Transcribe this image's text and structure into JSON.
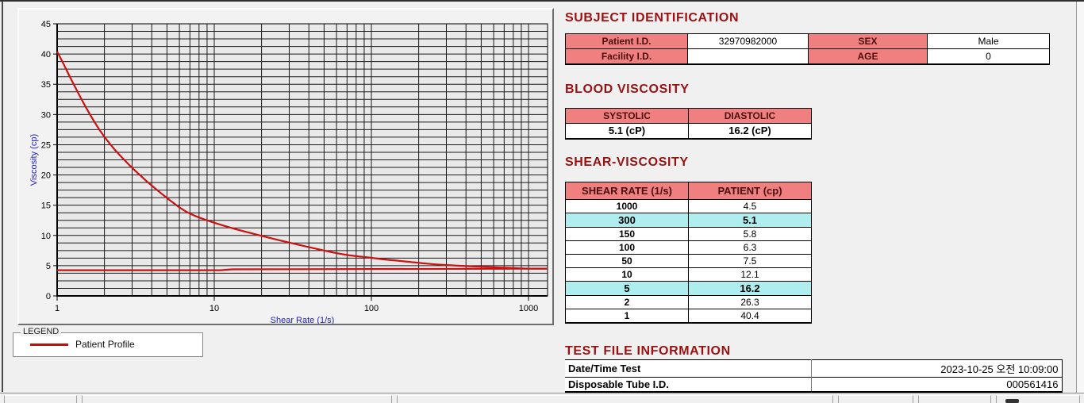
{
  "chart": {
    "legend_title": "LEGEND",
    "legend_entry": "Patient Profile",
    "axis_label_color": "#2222bb",
    "plot_bg": "#e9e9e9",
    "grid_color": "#1a1a1a",
    "curve_color": "#cc1111"
  },
  "chart_data": {
    "type": "line",
    "title": "",
    "xlabel": "Shear Rate (1/s)",
    "ylabel": "Viscosity (cp)",
    "x_scale": "log",
    "xlim": [
      1,
      1000
    ],
    "ylim": [
      0,
      45
    ],
    "x_major_ticks": [
      1,
      10,
      100,
      1000
    ],
    "y_major_ticks": [
      0,
      5,
      10,
      15,
      20,
      25,
      30,
      35,
      40,
      45
    ],
    "y_minor_step": 1.25,
    "x_minor": "log-mantissas-2-9",
    "grid": true,
    "legend_position": "below-left",
    "series": [
      {
        "name": "Patient Profile",
        "smooth": true,
        "x": [
          1,
          2,
          5,
          10,
          50,
          100,
          150,
          300,
          1000
        ],
        "y": [
          40.4,
          26.3,
          16.2,
          12.1,
          7.5,
          6.3,
          5.8,
          5.1,
          4.5
        ]
      },
      {
        "name": "unlabeled flat trace",
        "smooth": false,
        "x": [
          1,
          11,
          13,
          1000
        ],
        "y": [
          4.25,
          4.25,
          4.4,
          4.5
        ]
      }
    ]
  },
  "subject": {
    "title": "SUBJECT IDENTIFICATION",
    "rows": [
      {
        "label1": "Patient I.D.",
        "value1": "32970982000",
        "label2": "SEX",
        "value2": "Male"
      },
      {
        "label1": "Facility I.D.",
        "value1": "",
        "label2": "AGE",
        "value2": "0"
      }
    ]
  },
  "blood": {
    "title": "BLOOD VISCOSITY",
    "headers": [
      "SYSTOLIC",
      "DIASTOLIC"
    ],
    "values": [
      "5.1 (cP)",
      "16.2 (cP)"
    ]
  },
  "shear": {
    "title": "SHEAR-VISCOSITY",
    "headers": [
      "SHEAR RATE (1/s)",
      "PATIENT (cp)"
    ],
    "rows": [
      {
        "rate": "1000",
        "value": "4.5",
        "highlight": false
      },
      {
        "rate": "300",
        "value": "5.1",
        "highlight": true
      },
      {
        "rate": "150",
        "value": "5.8",
        "highlight": false
      },
      {
        "rate": "100",
        "value": "6.3",
        "highlight": false
      },
      {
        "rate": "50",
        "value": "7.5",
        "highlight": false
      },
      {
        "rate": "10",
        "value": "12.1",
        "highlight": false
      },
      {
        "rate": "5",
        "value": "16.2",
        "highlight": true
      },
      {
        "rate": "2",
        "value": "26.3",
        "highlight": false
      },
      {
        "rate": "1",
        "value": "40.4",
        "highlight": false
      }
    ]
  },
  "testfile": {
    "title": "TEST FILE INFORMATION",
    "rows": [
      {
        "label": "Date/Time Test",
        "value": "2023-10-25  오전 10:09:00"
      },
      {
        "label": "Disposable Tube I.D.",
        "value": "000561416"
      }
    ]
  },
  "colors": {
    "header_pink": "#f08080",
    "highlight_cyan": "#afeeee",
    "section_title": "#9b1111"
  }
}
